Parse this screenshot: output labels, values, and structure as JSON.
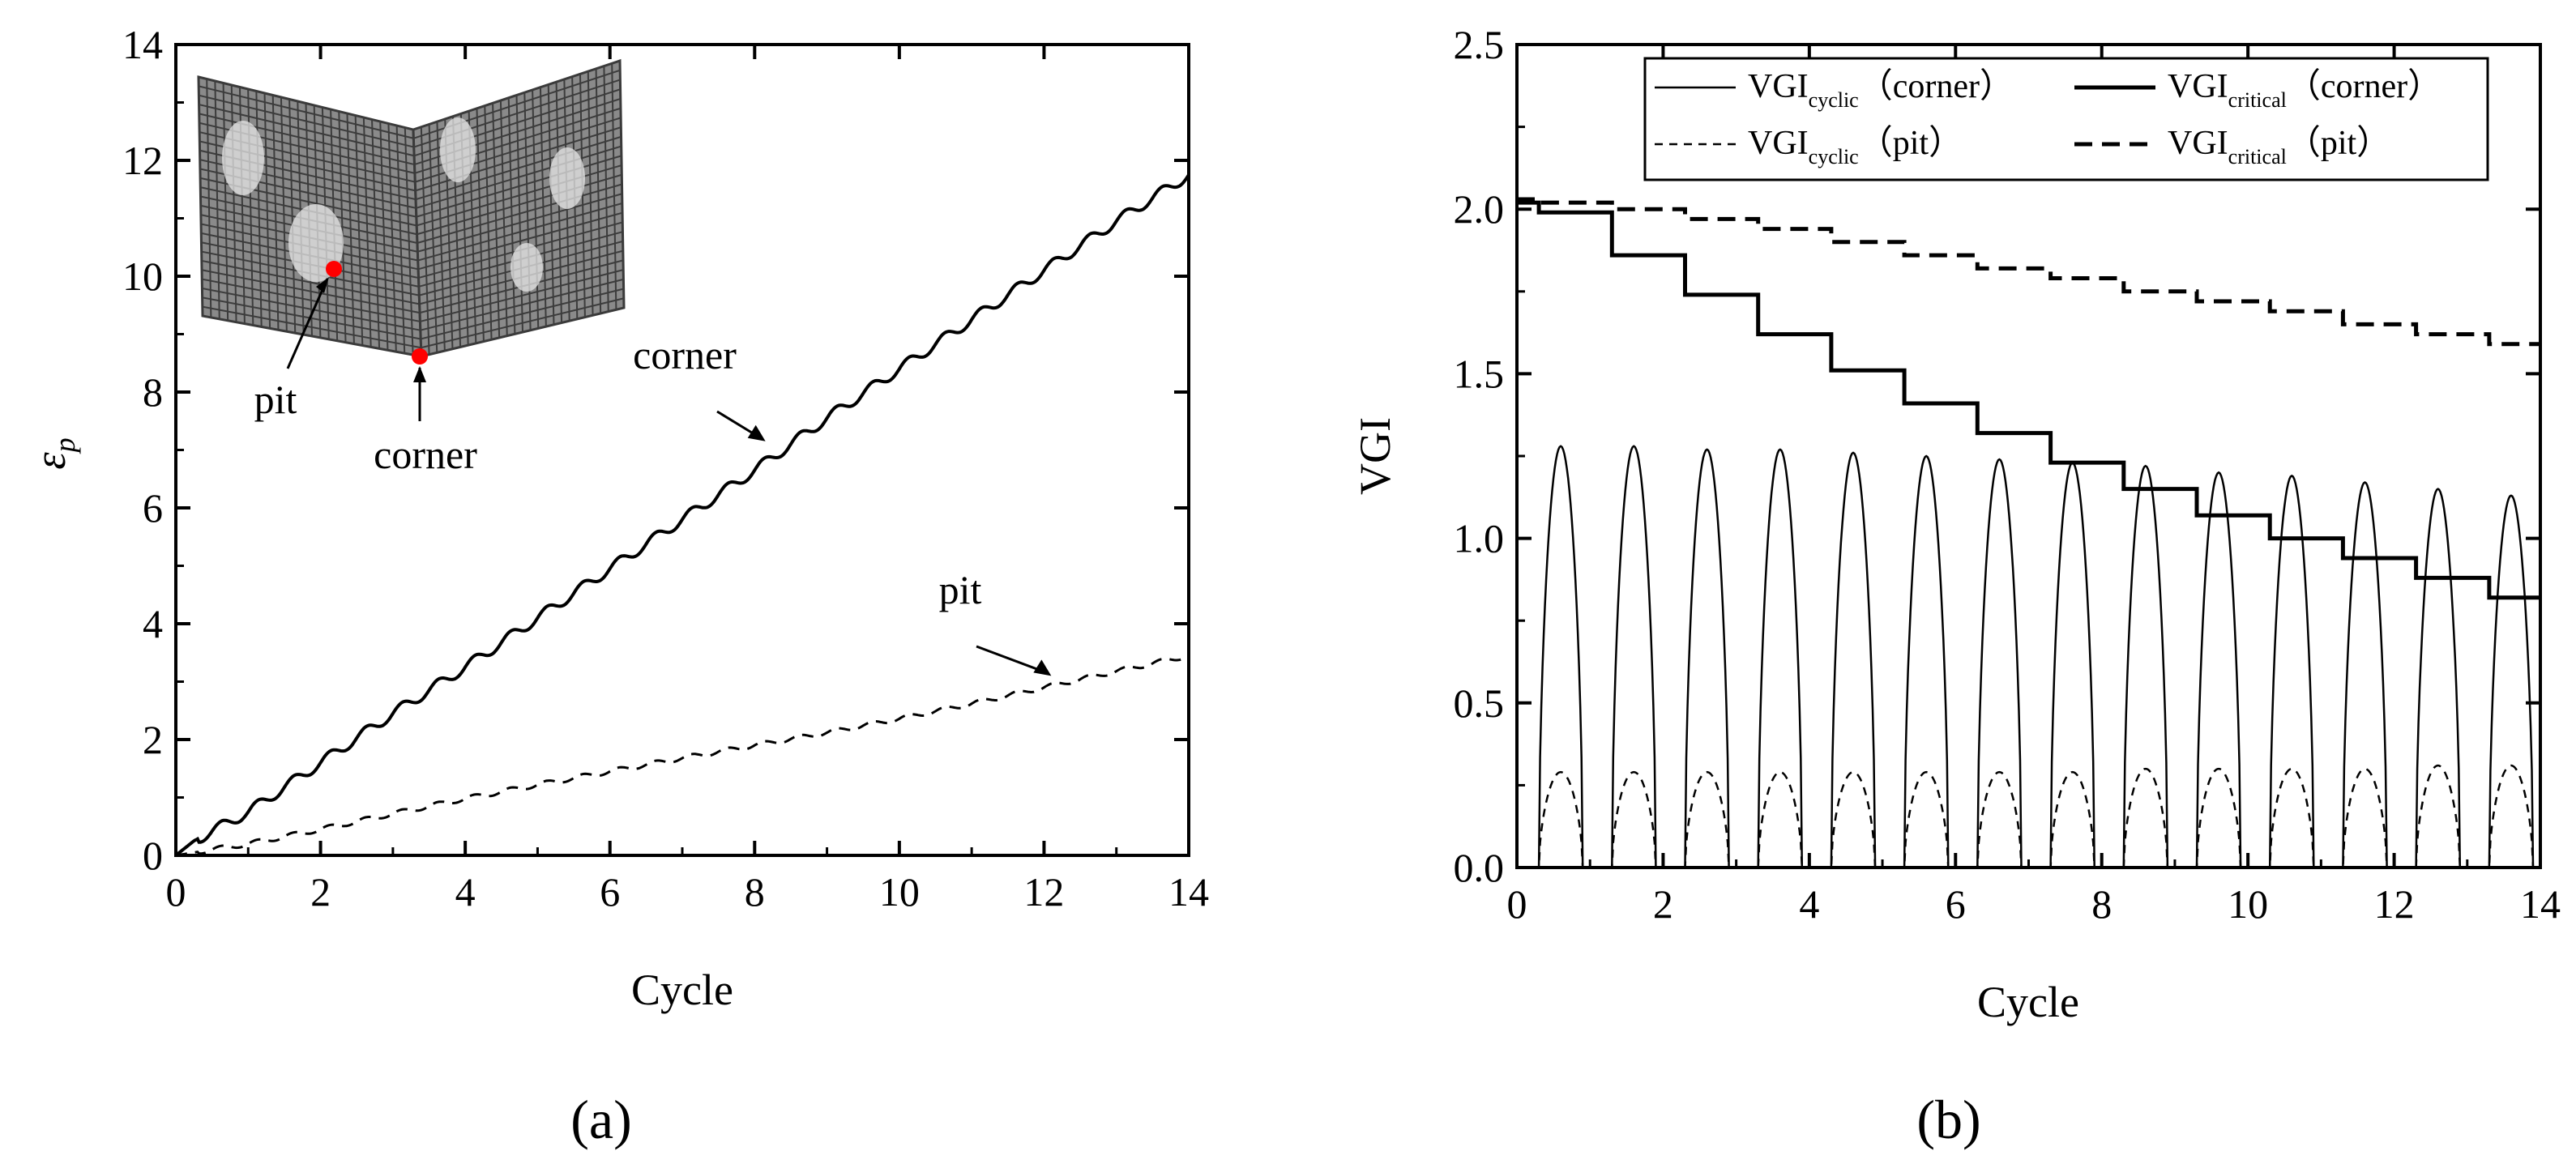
{
  "chart_data": [
    {
      "type": "line",
      "panel_label": "(a)",
      "xlabel": "Cycle",
      "ylabel": "ε",
      "ylabel_sub": "p",
      "xlim": [
        0,
        14
      ],
      "ylim": [
        0,
        14
      ],
      "xticks": [
        0,
        2,
        4,
        6,
        8,
        10,
        12,
        14
      ],
      "yticks": [
        0,
        2,
        4,
        6,
        8,
        10,
        12,
        14
      ],
      "grid": false,
      "legend": "none",
      "series": [
        {
          "name": "corner",
          "style": "solid",
          "x": [
            0,
            0.25,
            1,
            2,
            3,
            4,
            5,
            6,
            7,
            8,
            9,
            10,
            11,
            12,
            13,
            14
          ],
          "y": [
            0,
            0.25,
            0.75,
            1.6,
            2.45,
            3.25,
            4.1,
            4.95,
            5.8,
            6.65,
            7.55,
            8.4,
            9.25,
            10.1,
            10.95,
            11.75
          ]
        },
        {
          "name": "pit",
          "style": "dashed",
          "x": [
            0,
            1,
            2,
            3,
            4,
            5,
            6,
            7,
            8,
            9,
            10,
            11,
            12,
            13,
            14
          ],
          "y": [
            0,
            0.2,
            0.45,
            0.72,
            0.98,
            1.22,
            1.45,
            1.68,
            1.9,
            2.12,
            2.36,
            2.62,
            2.9,
            3.18,
            3.45
          ]
        }
      ],
      "annotations": [
        {
          "text": "corner",
          "x": 8.15,
          "y": 7.15
        },
        {
          "text": "pit",
          "x": 12.1,
          "y": 3.1
        }
      ],
      "inset": {
        "labels": [
          "pit",
          "corner"
        ],
        "marker_color": "#ff0000"
      }
    },
    {
      "type": "line",
      "panel_label": "(b)",
      "xlabel": "Cycle",
      "ylabel": "VGI",
      "xlim": [
        0,
        14
      ],
      "ylim": [
        0,
        2.5
      ],
      "xticks": [
        0,
        2,
        4,
        6,
        8,
        10,
        12,
        14
      ],
      "yticks": [
        "0.0",
        "0.5",
        "1.0",
        "1.5",
        "2.0",
        "2.5"
      ],
      "grid": false,
      "legend": "top-right",
      "series": [
        {
          "name": "VGI",
          "name_sub": "cyclic",
          "name_suffix": "（corner）",
          "style": "thin-solid",
          "periodic": {
            "start": 0.3,
            "period": 1.0,
            "peaks": [
              1.28,
              1.28,
              1.27,
              1.27,
              1.26,
              1.25,
              1.24,
              1.23,
              1.22,
              1.2,
              1.19,
              1.17,
              1.15,
              1.13,
              1.11
            ]
          }
        },
        {
          "name": "VGI",
          "name_sub": "critical",
          "name_suffix": "（corner）",
          "style": "thick-solid",
          "x": [
            0,
            0.3,
            1.3,
            2.3,
            3.3,
            4.3,
            5.3,
            6.3,
            7.3,
            8.3,
            9.3,
            10.3,
            11.3,
            12.3,
            13.3
          ],
          "y": [
            2.02,
            1.99,
            1.86,
            1.74,
            1.62,
            1.51,
            1.41,
            1.32,
            1.23,
            1.15,
            1.07,
            1.0,
            0.94,
            0.88,
            0.82
          ]
        },
        {
          "name": "VGI",
          "name_sub": "cyclic",
          "name_suffix": "（pit）",
          "style": "thin-dashed",
          "periodic": {
            "start": 0.3,
            "period": 1.0,
            "peaks": [
              0.29,
              0.29,
              0.29,
              0.29,
              0.29,
              0.29,
              0.29,
              0.29,
              0.3,
              0.3,
              0.3,
              0.3,
              0.31,
              0.31,
              0.31
            ]
          }
        },
        {
          "name": "VGI",
          "name_sub": "critical",
          "name_suffix": "（pit）",
          "style": "thick-dashed",
          "x": [
            0,
            0.3,
            1.3,
            2.3,
            3.3,
            4.3,
            5.3,
            6.3,
            7.3,
            8.3,
            9.3,
            10.3,
            11.3,
            12.3,
            13.3
          ],
          "y": [
            2.03,
            2.02,
            2.0,
            1.97,
            1.94,
            1.9,
            1.86,
            1.82,
            1.79,
            1.75,
            1.72,
            1.69,
            1.65,
            1.62,
            1.59
          ]
        }
      ]
    }
  ]
}
